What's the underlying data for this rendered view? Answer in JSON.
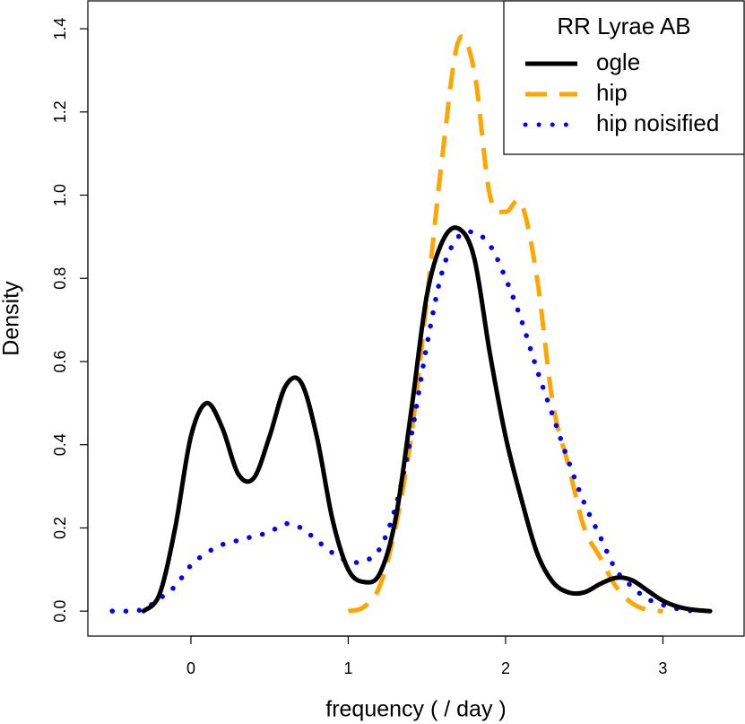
{
  "chart_data": {
    "type": "line",
    "x_label": "frequency ( / day )",
    "y_label": "Density",
    "x": [
      -0.5,
      -0.4,
      -0.3,
      -0.2,
      -0.1,
      0,
      0.1,
      0.2,
      0.3,
      0.4,
      0.5,
      0.6,
      0.7,
      0.8,
      0.9,
      1.0,
      1.1,
      1.2,
      1.3,
      1.4,
      1.5,
      1.6,
      1.7,
      1.8,
      1.9,
      2.0,
      2.1,
      2.2,
      2.3,
      2.4,
      2.5,
      2.6,
      2.7,
      2.8,
      2.9,
      3.0,
      3.1,
      3.2,
      3.3
    ],
    "series": [
      {
        "name": "ogle",
        "color": "#000000",
        "linestyle": "solid",
        "values": [
          null,
          null,
          0.0,
          0.04,
          0.2,
          0.42,
          0.5,
          0.44,
          0.33,
          0.32,
          0.42,
          0.54,
          0.55,
          0.42,
          0.22,
          0.1,
          0.07,
          0.09,
          0.22,
          0.48,
          0.76,
          0.89,
          0.92,
          0.85,
          0.62,
          0.42,
          0.27,
          0.14,
          0.07,
          0.045,
          0.045,
          0.065,
          0.08,
          0.075,
          0.05,
          0.025,
          0.01,
          0.003,
          0.0
        ]
      },
      {
        "name": "hip",
        "color": "#ffa500",
        "linestyle": "dashed",
        "values": [
          null,
          null,
          null,
          null,
          null,
          null,
          null,
          null,
          null,
          null,
          null,
          null,
          null,
          null,
          null,
          0.0,
          0.01,
          0.06,
          0.2,
          0.42,
          0.75,
          1.1,
          1.37,
          1.3,
          1.0,
          0.96,
          0.98,
          0.8,
          0.5,
          0.35,
          0.2,
          0.13,
          0.06,
          0.02,
          0.003,
          0.0,
          null,
          null,
          null
        ]
      },
      {
        "name": "hip noisified",
        "color": "#0000ff",
        "linestyle": "dotted",
        "values": [
          0.0,
          0.0,
          0.005,
          0.03,
          0.06,
          0.11,
          0.14,
          0.16,
          0.17,
          0.18,
          0.19,
          0.21,
          0.2,
          0.17,
          0.14,
          0.12,
          0.12,
          0.15,
          0.25,
          0.42,
          0.64,
          0.82,
          0.9,
          0.91,
          0.88,
          0.8,
          0.7,
          0.58,
          0.47,
          0.36,
          0.26,
          0.18,
          0.1,
          0.06,
          0.03,
          0.015,
          0.005,
          0.0,
          null
        ]
      }
    ],
    "xlim": [
      -0.655,
      3.516
    ],
    "ylim": [
      -0.06,
      1.467
    ],
    "xticks": [
      0,
      1,
      2,
      3
    ],
    "yticks": [
      {
        "value": 0,
        "label": "0.0"
      },
      0.2,
      0.4,
      0.6,
      0.8,
      {
        "value": 1,
        "label": "1.0"
      },
      1.2,
      1.4
    ],
    "legend": {
      "title": "RR Lyrae AB",
      "position": "topright"
    },
    "grid": false
  }
}
